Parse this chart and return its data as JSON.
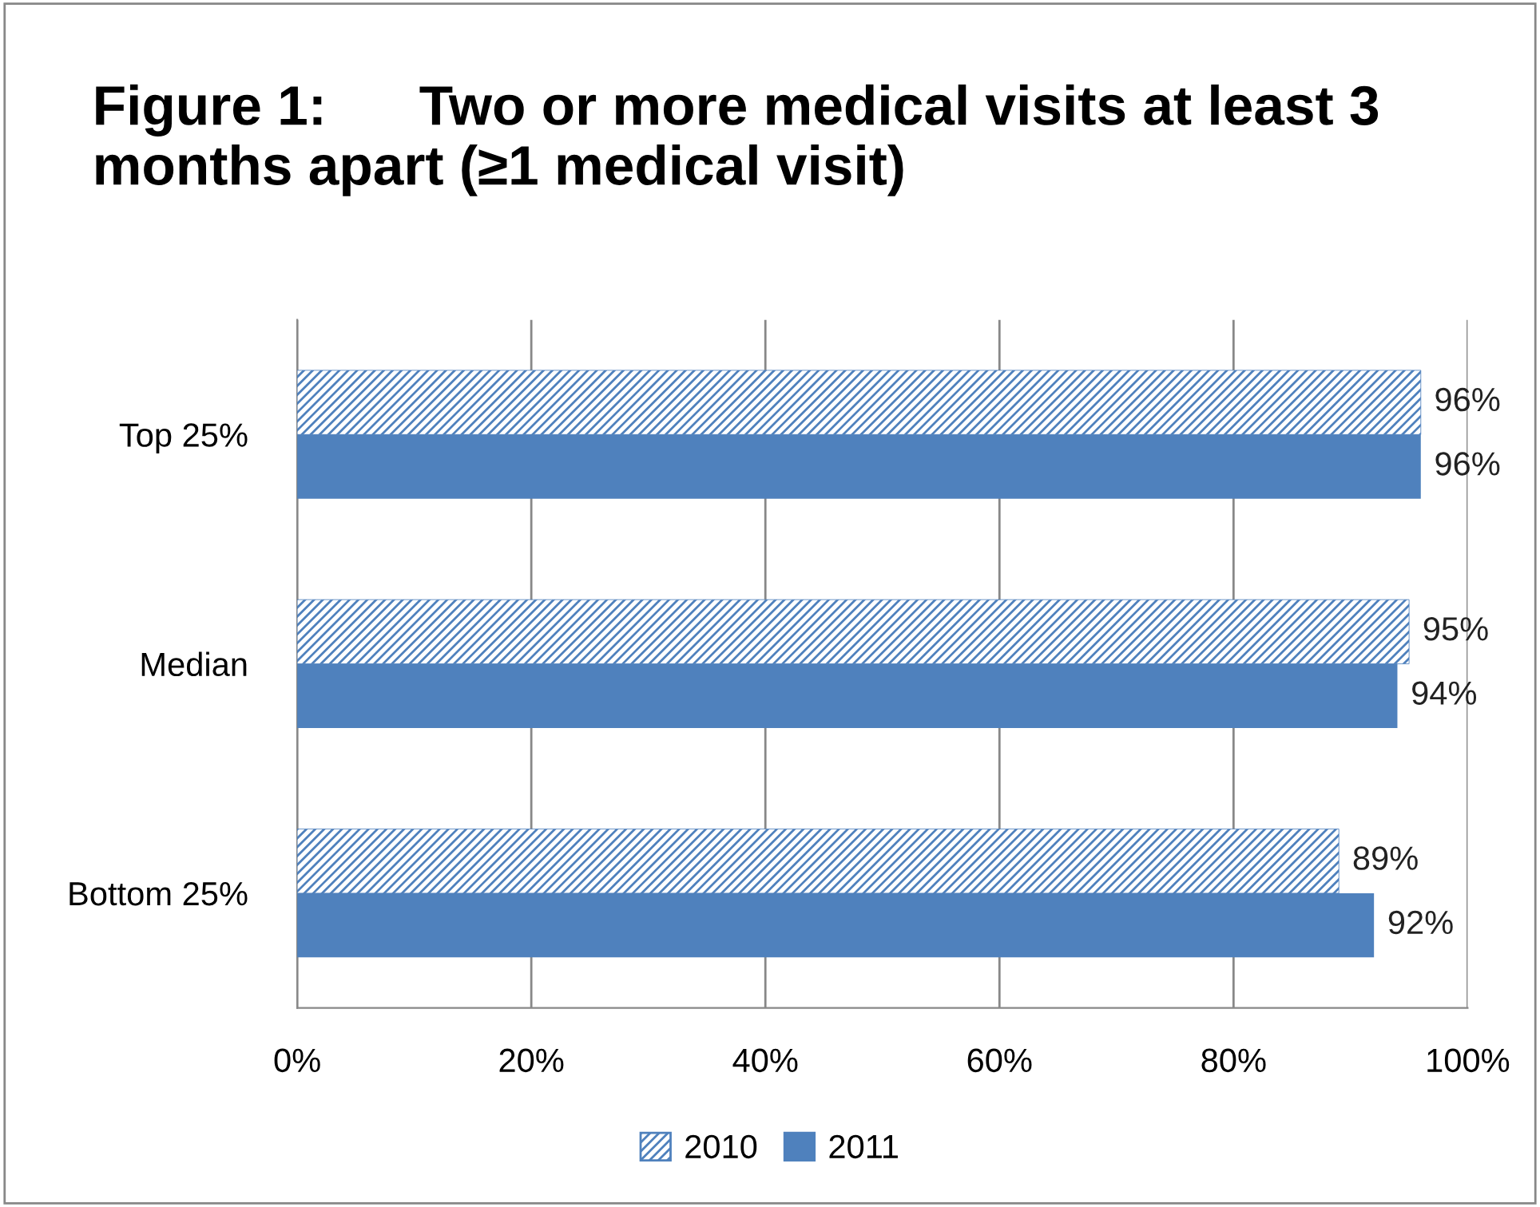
{
  "chart_data": {
    "type": "bar",
    "orientation": "horizontal",
    "title": "Figure 1:      Two or more medical visits at least 3 months apart (≥1 medical visit)",
    "categories": [
      "Top 25%",
      "Median",
      "Bottom 25%"
    ],
    "series": [
      {
        "name": "2010",
        "color": "#4f81bd",
        "values": [
          96,
          95,
          89
        ],
        "value_labels": [
          "96%",
          "95%",
          "89%"
        ]
      },
      {
        "name": "2011",
        "color": "#4f81bd",
        "values": [
          96,
          94,
          92
        ],
        "value_labels": [
          "96%",
          "94%",
          "92%"
        ]
      }
    ],
    "xlim": [
      0,
      100
    ],
    "xticks": [
      {
        "value": 0,
        "label": "0%"
      },
      {
        "value": 20,
        "label": "20%"
      },
      {
        "value": 40,
        "label": "40%"
      },
      {
        "value": 60,
        "label": "60%"
      },
      {
        "value": 80,
        "label": "80%"
      },
      {
        "value": 100,
        "label": "100%"
      }
    ],
    "grid": "x",
    "legend": "bottom"
  }
}
